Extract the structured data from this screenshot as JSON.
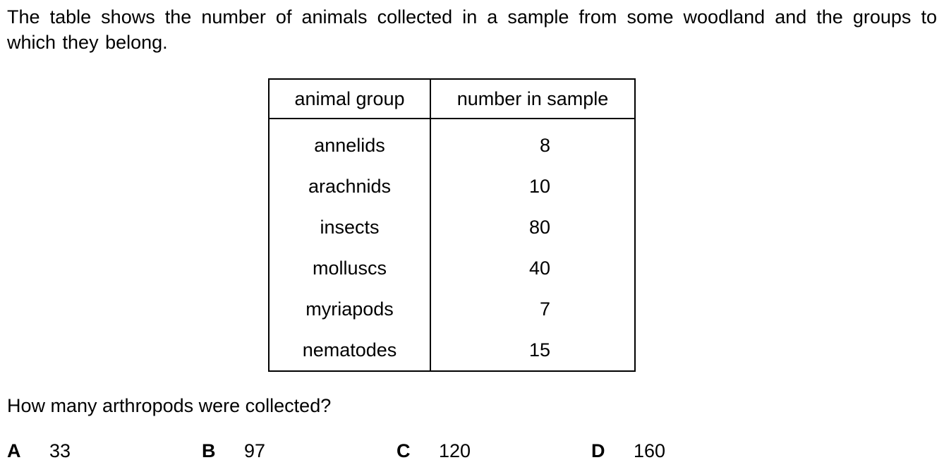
{
  "intro_text": "The table shows the number of animals collected in a sample from some woodland and the groups to which they belong.",
  "table": {
    "headers": [
      "animal group",
      "number in sample"
    ],
    "rows": [
      {
        "group": "annelids",
        "number": "8"
      },
      {
        "group": "arachnids",
        "number": "10"
      },
      {
        "group": "insects",
        "number": "80"
      },
      {
        "group": "molluscs",
        "number": "40"
      },
      {
        "group": "myriapods",
        "number": "7"
      },
      {
        "group": "nematodes",
        "number": "15"
      }
    ]
  },
  "question": "How many arthropods were collected?",
  "options": [
    {
      "letter": "A",
      "value": "33"
    },
    {
      "letter": "B",
      "value": "97"
    },
    {
      "letter": "C",
      "value": "120"
    },
    {
      "letter": "D",
      "value": "160"
    }
  ]
}
